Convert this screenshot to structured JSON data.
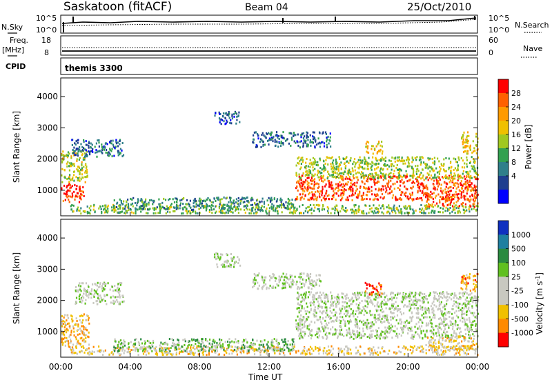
{
  "header": {
    "title": "Saskatoon (fitACF)",
    "beam": "Beam 04",
    "date": "25/Oct/2010"
  },
  "top_panels": {
    "nsky_label": "N.Sky",
    "nsearch_label": "N.Search",
    "nsky_ticks": [
      "10^5",
      "10^0"
    ],
    "nsearch_ticks": [
      "10^5",
      "10^0"
    ],
    "freq_label_1": "Freq.",
    "freq_label_2": "[MHz]",
    "freq_ticks": [
      "18",
      "8"
    ],
    "nave_label": "Nave",
    "nave_ticks": [
      "60",
      "0"
    ],
    "cpid_label": "CPID",
    "cpid_value": "themis 3300"
  },
  "chart_data": [
    {
      "type": "heatmap",
      "name": "power",
      "ylabel": "Slant Range [km]",
      "xlabel": "Time UT",
      "x_ticks": [
        "00:00",
        "04:00",
        "08:00",
        "12:00",
        "16:00",
        "20:00",
        "00:00"
      ],
      "x_range_hours": [
        0,
        24
      ],
      "y_range_km": [
        180,
        4600
      ],
      "y_ticks": [
        1000,
        2000,
        3000,
        4000
      ],
      "colorbar": {
        "label": "Power [dB]",
        "ticks": [
          "28",
          "24",
          "20",
          "16",
          "12",
          "8",
          "4"
        ],
        "colors": [
          "#ff0000",
          "#ff6000",
          "#ff9a00",
          "#f0c000",
          "#a0c820",
          "#33a050",
          "#2f7f8a",
          "#1f3f8f",
          "#0000ff"
        ]
      },
      "features": [
        {
          "x0": 0.0,
          "x1": 1.3,
          "y0": 650,
          "y1": 1250,
          "level": 0.95
        },
        {
          "x0": 0.0,
          "x1": 1.5,
          "y0": 1250,
          "y1": 2300,
          "level": 0.55
        },
        {
          "x0": 0.6,
          "x1": 3.6,
          "y0": 2100,
          "y1": 2650,
          "level": 0.2
        },
        {
          "x0": 0.5,
          "x1": 24.0,
          "y0": 280,
          "y1": 560,
          "level": 0.45
        },
        {
          "x0": 3.0,
          "x1": 13.5,
          "y0": 400,
          "y1": 800,
          "level": 0.3
        },
        {
          "x0": 8.8,
          "x1": 10.3,
          "y0": 3150,
          "y1": 3550,
          "level": 0.15
        },
        {
          "x0": 11.0,
          "x1": 15.5,
          "y0": 2400,
          "y1": 2900,
          "level": 0.2
        },
        {
          "x0": 13.5,
          "x1": 24.0,
          "y0": 700,
          "y1": 1500,
          "level": 0.9
        },
        {
          "x0": 13.5,
          "x1": 24.0,
          "y0": 1400,
          "y1": 2100,
          "level": 0.5
        },
        {
          "x0": 17.5,
          "x1": 18.5,
          "y0": 2200,
          "y1": 2600,
          "level": 0.65
        },
        {
          "x0": 21.0,
          "x1": 24.0,
          "y0": 500,
          "y1": 900,
          "level": 0.9
        },
        {
          "x0": 23.0,
          "x1": 24.0,
          "y0": 2200,
          "y1": 2900,
          "level": 0.65
        }
      ]
    },
    {
      "type": "heatmap",
      "name": "velocity",
      "ylabel": "Slant Range [km]",
      "xlabel": "Time UT",
      "x_ticks": [
        "00:00",
        "04:00",
        "08:00",
        "12:00",
        "16:00",
        "20:00",
        "00:00"
      ],
      "x_range_hours": [
        0,
        24
      ],
      "y_range_km": [
        180,
        4600
      ],
      "y_ticks": [
        1000,
        2000,
        3000,
        4000
      ],
      "colorbar": {
        "label": "Velocity [m s^-1]",
        "ticks": [
          "1000",
          "500",
          "100",
          "25",
          "-25",
          "-100",
          "-500",
          "-1000"
        ],
        "colors": [
          "#1030c0",
          "#1f7fa0",
          "#2a8a40",
          "#60c020",
          "#c8c8c0",
          "#c8c8c0",
          "#f0c000",
          "#ff8a00",
          "#ff0000"
        ]
      },
      "features": [
        {
          "x0": 0.0,
          "x1": 1.6,
          "y0": 500,
          "y1": 1600,
          "level": 0.75
        },
        {
          "x0": 0.8,
          "x1": 3.6,
          "y0": 1900,
          "y1": 2600,
          "level": 0.5
        },
        {
          "x0": 0.5,
          "x1": 24.0,
          "y0": 280,
          "y1": 560,
          "level": 0.7
        },
        {
          "x0": 3.0,
          "x1": 13.5,
          "y0": 400,
          "y1": 800,
          "level": 0.4
        },
        {
          "x0": 8.8,
          "x1": 10.3,
          "y0": 3100,
          "y1": 3550,
          "level": 0.5
        },
        {
          "x0": 11.0,
          "x1": 15.0,
          "y0": 2400,
          "y1": 2900,
          "level": 0.5
        },
        {
          "x0": 13.5,
          "x1": 24.0,
          "y0": 800,
          "y1": 2300,
          "level": 0.5
        },
        {
          "x0": 17.5,
          "x1": 18.5,
          "y0": 2200,
          "y1": 2600,
          "level": 1.0
        },
        {
          "x0": 21.0,
          "x1": 24.0,
          "y0": 400,
          "y1": 900,
          "level": 0.72
        },
        {
          "x0": 23.0,
          "x1": 24.0,
          "y0": 2300,
          "y1": 2900,
          "level": 0.85
        }
      ]
    }
  ]
}
